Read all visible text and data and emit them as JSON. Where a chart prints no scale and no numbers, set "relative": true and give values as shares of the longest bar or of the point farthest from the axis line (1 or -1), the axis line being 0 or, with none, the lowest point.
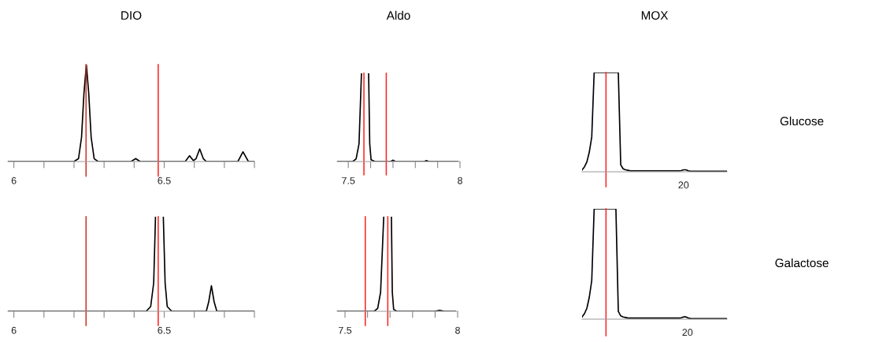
{
  "chart_data": [
    {
      "type": "line",
      "title": "DIO",
      "relative": true,
      "tick_labels": "x",
      "xlim": [
        5.98,
        6.8
      ],
      "xticks": [
        6,
        {
          "value": 6.1,
          "label": null
        },
        {
          "value": 6.2,
          "label": null
        },
        {
          "value": 6.3,
          "label": null
        },
        {
          "value": 6.4,
          "label": null
        },
        6.5,
        {
          "value": 6.6,
          "label": null
        },
        {
          "value": 6.7,
          "label": null
        },
        {
          "value": 6.8,
          "label": null
        }
      ],
      "ref_lines": [
        {
          "axis": "x",
          "value": 6.24,
          "color": "#d03020"
        },
        {
          "axis": "x",
          "value": 6.48,
          "color": "#ff2020"
        }
      ],
      "series": [
        {
          "color": "#000000",
          "x": [
            5.98,
            6.2,
            6.215,
            6.225,
            6.233,
            6.241,
            6.249,
            6.257,
            6.267,
            6.28,
            6.39,
            6.405,
            6.42,
            6.57,
            6.584,
            6.597,
            6.606,
            6.618,
            6.63,
            6.64,
            6.745,
            6.762,
            6.78,
            6.8
          ],
          "values": [
            0,
            0,
            0.03,
            0.25,
            0.7,
            1,
            0.7,
            0.25,
            0.03,
            0,
            0,
            0.03,
            0,
            0,
            0.06,
            0.01,
            0.03,
            0.13,
            0.03,
            0,
            0,
            0.1,
            0,
            0
          ]
        }
      ]
    },
    {
      "type": "line",
      "title": "Aldo",
      "relative": true,
      "tick_labels": "x",
      "xlim": [
        7.45,
        8.0
      ],
      "xticks": [
        7.5,
        {
          "value": 7.6,
          "label": null
        },
        {
          "value": 7.7,
          "label": null
        },
        {
          "value": 7.8,
          "label": null
        },
        {
          "value": 7.9,
          "label": null
        },
        8
      ],
      "ref_lines": [
        {
          "axis": "x",
          "value": 7.57,
          "color": "#ff2020"
        },
        {
          "axis": "x",
          "value": 7.67,
          "color": "#ff2020"
        }
      ],
      "series": [
        {
          "color": "#000000",
          "x": [
            7.45,
            7.52,
            7.535,
            7.548,
            7.559,
            7.575,
            7.591,
            7.596,
            7.602,
            7.62,
            7.69,
            7.7,
            7.71,
            7.84,
            7.85,
            7.86,
            7.99
          ],
          "values": [
            0,
            0,
            0.03,
            0.2,
            1,
            null,
            1,
            0.2,
            0.02,
            0,
            0,
            0.015,
            0,
            0,
            0.01,
            0,
            0
          ]
        }
      ]
    },
    {
      "type": "line",
      "title": "MOX",
      "relative": true,
      "tick_labels": false,
      "annotations": [
        "Glucose",
        "20"
      ],
      "categories": [
        null,
        null,
        null,
        null,
        null,
        null,
        null,
        null,
        null,
        null,
        null,
        null,
        null,
        null,
        null,
        null,
        null,
        null,
        null,
        null,
        null,
        null,
        null,
        null,
        null,
        null,
        null,
        null,
        null,
        null,
        null,
        null,
        null,
        null,
        null,
        null,
        null,
        null,
        null,
        null,
        null,
        null,
        null,
        null,
        null,
        null,
        null,
        null,
        null,
        null,
        null,
        null,
        null,
        null,
        null,
        null,
        null,
        null,
        null,
        null,
        null
      ],
      "series": [
        {
          "color": "#000000",
          "values": [
            0.02,
            0.05,
            0.1,
            0.2,
            0.35,
            1,
            1,
            1,
            1,
            1,
            1,
            1,
            1,
            1,
            1,
            1,
            0.07,
            0.03,
            0.02,
            0.015,
            0.01,
            0.01,
            0.01,
            0.01,
            0.01,
            0.01,
            0.01,
            0.01,
            0.01,
            0.01,
            0.01,
            0.01,
            0.01,
            0.01,
            0.01,
            0.01,
            0.01,
            0.01,
            0.01,
            0.01,
            0.01,
            0.012,
            0.02,
            0.02,
            0.01,
            0.005,
            0.005,
            0.005,
            0.005,
            0.005,
            0.005,
            0.005,
            0.005,
            0.005,
            0.005,
            0.005,
            0.005,
            0.005,
            0.005,
            0.005,
            0.005
          ]
        }
      ]
    },
    {
      "type": "line",
      "relative": true,
      "tick_labels": "x",
      "xlim": [
        5.98,
        6.8
      ],
      "xticks": [
        6,
        {
          "value": 6.1,
          "label": null
        },
        {
          "value": 6.2,
          "label": null
        },
        {
          "value": 6.3,
          "label": null
        },
        {
          "value": 6.4,
          "label": null
        },
        6.5,
        {
          "value": 6.6,
          "label": null
        },
        {
          "value": 6.7,
          "label": null
        },
        {
          "value": 6.8,
          "label": null
        }
      ],
      "ref_lines": [
        {
          "axis": "x",
          "value": 6.24,
          "color": "#d03020"
        },
        {
          "axis": "x",
          "value": 6.48,
          "color": "#ff2020"
        }
      ],
      "series": [
        {
          "color": "#000000",
          "x": [
            5.98,
            6.44,
            6.455,
            6.465,
            6.471,
            6.484,
            6.497,
            6.503,
            6.51,
            6.525,
            6.64,
            6.648,
            6.657,
            6.666,
            6.675,
            6.8
          ],
          "values": [
            0,
            0,
            0.05,
            0.3,
            1,
            null,
            1,
            0.3,
            0.05,
            0,
            0,
            0.1,
            0.27,
            0.1,
            0,
            0
          ]
        }
      ]
    },
    {
      "type": "line",
      "relative": true,
      "tick_labels": "x",
      "xlim": [
        7.465,
        8.0
      ],
      "xticks": [
        7.5,
        {
          "value": 7.6,
          "label": null
        },
        {
          "value": 7.7,
          "label": null
        },
        {
          "value": 7.8,
          "label": null
        },
        {
          "value": 7.9,
          "label": null
        },
        8
      ],
      "ref_lines": [
        {
          "axis": "x",
          "value": 7.59,
          "color": "#ff2020"
        },
        {
          "axis": "x",
          "value": 7.69,
          "color": "#ff2020"
        }
      ],
      "series": [
        {
          "color": "#000000",
          "x": [
            7.465,
            7.63,
            7.645,
            7.658,
            7.672,
            7.689,
            7.706,
            7.71,
            7.716,
            7.73,
            7.9,
            7.92,
            7.94,
            7.99
          ],
          "values": [
            0,
            0,
            0.03,
            0.2,
            1,
            null,
            1,
            0.2,
            0.02,
            0,
            0,
            0.01,
            0,
            0
          ]
        }
      ]
    },
    {
      "type": "line",
      "relative": true,
      "tick_labels": false,
      "annotations": [
        "Galactose",
        "20"
      ],
      "categories": [
        null,
        null,
        null,
        null,
        null,
        null,
        null,
        null,
        null,
        null,
        null,
        null,
        null,
        null,
        null,
        null,
        null,
        null,
        null,
        null,
        null,
        null,
        null,
        null,
        null,
        null,
        null,
        null,
        null,
        null,
        null,
        null,
        null,
        null,
        null,
        null,
        null,
        null,
        null,
        null,
        null,
        null,
        null,
        null,
        null,
        null,
        null,
        null,
        null,
        null,
        null,
        null,
        null,
        null,
        null,
        null,
        null,
        null,
        null,
        null,
        null
      ],
      "series": [
        {
          "color": "#000000",
          "values": [
            0.02,
            0.05,
            0.1,
            0.2,
            0.35,
            1,
            1,
            1,
            1,
            1,
            1,
            1,
            1,
            1,
            1,
            0.07,
            0.03,
            0.02,
            0.015,
            0.01,
            0.01,
            0.01,
            0.01,
            0.01,
            0.01,
            0.01,
            0.01,
            0.01,
            0.01,
            0.01,
            0.01,
            0.01,
            0.01,
            0.01,
            0.01,
            0.01,
            0.01,
            0.01,
            0.01,
            0.01,
            0.01,
            0.012,
            0.02,
            0.02,
            0.01,
            0.005,
            0.005,
            0.005,
            0.005,
            0.005,
            0.005,
            0.005,
            0.005,
            0.005,
            0.005,
            0.005,
            0.005,
            0.005,
            0.005,
            0.005,
            0.005
          ]
        }
      ]
    }
  ]
}
